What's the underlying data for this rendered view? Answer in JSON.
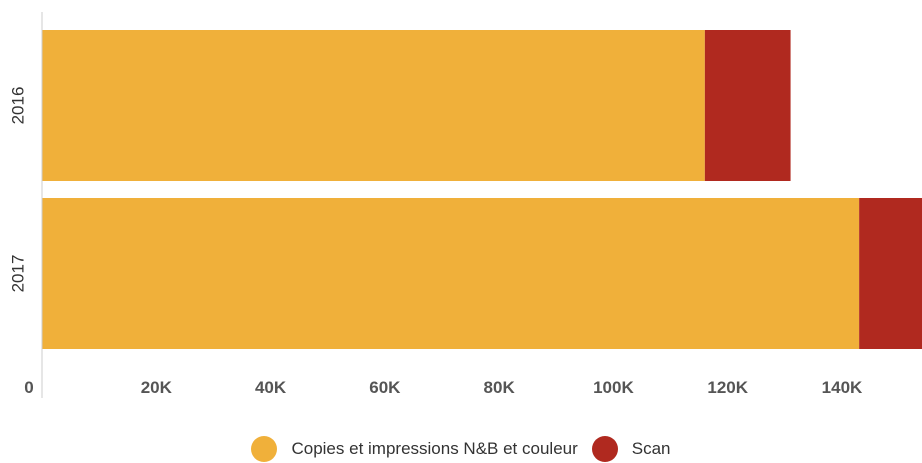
{
  "chart_data": {
    "type": "bar",
    "orientation": "horizontal",
    "stacked": true,
    "categories": [
      "2016",
      "2017"
    ],
    "series": [
      {
        "name": "Copies et impressions N&B et couleur",
        "values": [
          116000,
          143000
        ],
        "color": "#F0B03A"
      },
      {
        "name": "Scan",
        "values": [
          15000,
          12000
        ],
        "color": "#B0291F"
      }
    ],
    "xticks": [
      0,
      20000,
      40000,
      60000,
      80000,
      100000,
      120000,
      140000
    ],
    "xtick_labels": [
      "0",
      "20K",
      "40K",
      "60K",
      "80K",
      "100K",
      "120K",
      "140K"
    ],
    "xlim": [
      0,
      154000
    ],
    "grid": false,
    "legend_position": "bottom",
    "title": "",
    "xlabel": "",
    "ylabel": ""
  }
}
